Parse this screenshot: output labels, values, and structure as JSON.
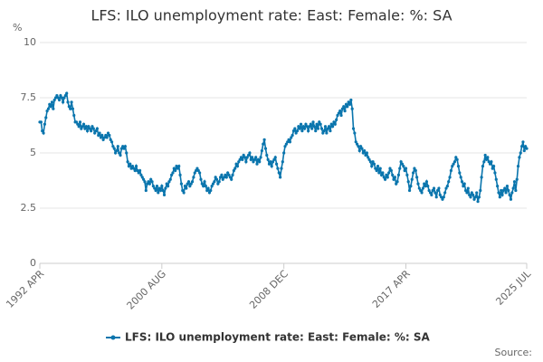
{
  "chart_data": {
    "type": "line",
    "title": "LFS: ILO unemployment rate: East: Female: %: SA",
    "y_label": "%",
    "source": "Source:",
    "ylim": [
      0,
      10
    ],
    "yticks": [
      0,
      2.5,
      5,
      7.5,
      10
    ],
    "grid": true,
    "categories": [
      "1992 APR",
      null,
      null,
      null,
      null,
      null,
      null,
      null,
      null,
      null,
      null,
      null,
      null,
      null,
      null,
      null,
      null,
      null,
      null,
      null,
      null,
      null,
      null,
      null,
      null,
      null,
      null,
      null,
      null,
      null,
      null,
      null,
      null,
      null,
      null,
      null,
      null,
      null,
      null,
      null,
      null,
      null,
      null,
      null,
      null,
      null,
      null,
      null,
      null,
      null,
      null,
      null,
      null,
      null,
      null,
      null,
      null,
      null,
      null,
      null,
      null,
      null,
      null,
      null,
      null,
      null,
      null,
      null,
      null,
      null,
      null,
      null,
      null,
      null,
      null,
      null,
      null,
      null,
      null,
      null,
      null,
      null,
      null,
      null,
      null,
      null,
      null,
      null,
      null,
      null,
      null,
      null,
      null,
      null,
      null,
      null,
      null,
      null,
      null,
      null,
      "2000 AUG",
      null,
      null,
      null,
      null,
      null,
      null,
      null,
      null,
      null,
      null,
      null,
      null,
      null,
      null,
      null,
      null,
      null,
      null,
      null,
      null,
      null,
      null,
      null,
      null,
      null,
      null,
      null,
      null,
      null,
      null,
      null,
      null,
      null,
      null,
      null,
      null,
      null,
      null,
      null,
      null,
      null,
      null,
      null,
      null,
      null,
      null,
      null,
      null,
      null,
      null,
      null,
      null,
      null,
      null,
      null,
      null,
      null,
      null,
      null,
      null,
      null,
      null,
      null,
      null,
      null,
      null,
      null,
      null,
      null,
      null,
      null,
      null,
      null,
      null,
      null,
      null,
      null,
      null,
      null,
      null,
      null,
      null,
      null,
      null,
      null,
      null,
      null,
      null,
      null,
      null,
      null,
      null,
      null,
      null,
      null,
      null,
      null,
      null,
      null,
      "2008 DEC",
      null,
      null,
      null,
      null,
      null,
      null,
      null,
      null,
      null,
      null,
      null,
      null,
      null,
      null,
      null,
      null,
      null,
      null,
      null,
      null,
      null,
      null,
      null,
      null,
      null,
      null,
      null,
      null,
      null,
      null,
      null,
      null,
      null,
      null,
      null,
      null,
      null,
      null,
      null,
      null,
      null,
      null,
      null,
      null,
      null,
      null,
      null,
      null,
      null,
      null,
      null,
      null,
      null,
      null,
      null,
      null,
      null,
      null,
      null,
      null,
      null,
      null,
      null,
      null,
      null,
      null,
      null,
      null,
      null,
      null,
      null,
      null,
      null,
      null,
      null,
      null,
      null,
      null,
      null,
      null,
      null,
      null,
      null,
      null,
      null,
      null,
      null,
      null,
      null,
      null,
      null,
      null,
      null,
      null,
      null,
      null,
      null,
      null,
      null,
      "2017 APR",
      null,
      null,
      null,
      null,
      null,
      null,
      null,
      null,
      null,
      null,
      null,
      null,
      null,
      null,
      null,
      null,
      null,
      null,
      null,
      null,
      null,
      null,
      null,
      null,
      null,
      null,
      null,
      null,
      null,
      null,
      null,
      null,
      null,
      null,
      null,
      null,
      null,
      null,
      null,
      null,
      null,
      null,
      null,
      null,
      null,
      null,
      null,
      null,
      null,
      null,
      null,
      null,
      null,
      null,
      null,
      null,
      null,
      null,
      null,
      null,
      null,
      null,
      null,
      null,
      null,
      null,
      null,
      null,
      null,
      null,
      null,
      null,
      null,
      null,
      null,
      null,
      null,
      null,
      null,
      null,
      null,
      null,
      null,
      null,
      null,
      null,
      null,
      null,
      null,
      null,
      null,
      null,
      null,
      null,
      null,
      null,
      null,
      null,
      "2025 JUL"
    ],
    "series": [
      {
        "name": "LFS: ILO unemployment rate: East: Female: %: SA",
        "color": "#0a75ad",
        "values": [
          6.4,
          6.4,
          6.0,
          5.9,
          6.3,
          6.6,
          6.9,
          7.0,
          7.2,
          7.1,
          7.3,
          7.0,
          7.4,
          7.5,
          7.6,
          7.5,
          7.4,
          7.6,
          7.5,
          7.3,
          7.5,
          7.6,
          7.7,
          7.3,
          7.1,
          7.0,
          7.3,
          7.0,
          6.7,
          6.4,
          6.4,
          6.3,
          6.2,
          6.4,
          6.1,
          6.2,
          6.3,
          6.1,
          6.2,
          6.0,
          6.2,
          6.1,
          6.0,
          6.2,
          6.1,
          5.9,
          6.0,
          6.1,
          5.8,
          5.9,
          5.7,
          5.8,
          5.6,
          5.7,
          5.8,
          5.7,
          5.9,
          5.8,
          5.6,
          5.5,
          5.3,
          5.2,
          5.0,
          5.1,
          5.3,
          5.0,
          4.9,
          5.2,
          5.3,
          5.2,
          5.3,
          5.0,
          4.6,
          4.4,
          4.5,
          4.3,
          4.4,
          4.3,
          4.2,
          4.4,
          4.2,
          4.1,
          4.2,
          4.0,
          3.9,
          3.8,
          3.7,
          3.3,
          3.6,
          3.7,
          3.6,
          3.8,
          3.7,
          3.5,
          3.4,
          3.3,
          3.5,
          3.2,
          3.4,
          3.3,
          3.5,
          3.3,
          3.1,
          3.4,
          3.6,
          3.5,
          3.7,
          3.8,
          4.0,
          4.1,
          4.3,
          4.2,
          4.4,
          4.3,
          4.4,
          4.0,
          3.6,
          3.3,
          3.2,
          3.5,
          3.4,
          3.6,
          3.7,
          3.5,
          3.6,
          3.7,
          3.9,
          4.1,
          4.2,
          4.3,
          4.2,
          4.1,
          3.8,
          3.6,
          3.5,
          3.7,
          3.5,
          3.3,
          3.4,
          3.2,
          3.3,
          3.5,
          3.6,
          3.7,
          3.9,
          3.8,
          3.6,
          3.7,
          3.9,
          4.0,
          3.8,
          3.9,
          4.0,
          3.9,
          4.1,
          4.0,
          3.9,
          3.8,
          4.0,
          4.2,
          4.3,
          4.5,
          4.4,
          4.6,
          4.7,
          4.8,
          4.7,
          4.9,
          4.8,
          4.6,
          4.8,
          4.9,
          5.0,
          4.7,
          4.8,
          4.6,
          4.7,
          4.8,
          4.5,
          4.7,
          4.6,
          4.8,
          5.1,
          5.4,
          5.6,
          5.2,
          4.9,
          4.7,
          4.5,
          4.6,
          4.4,
          4.6,
          4.7,
          4.8,
          4.5,
          4.3,
          4.1,
          3.9,
          4.3,
          4.6,
          5.0,
          5.3,
          5.4,
          5.5,
          5.6,
          5.5,
          5.7,
          5.8,
          6.0,
          6.1,
          5.9,
          6.0,
          6.2,
          6.1,
          6.3,
          6.0,
          6.2,
          6.1,
          6.3,
          6.2,
          6.0,
          6.2,
          6.3,
          6.1,
          6.4,
          6.2,
          6.0,
          6.3,
          6.1,
          6.4,
          6.3,
          6.1,
          5.9,
          6.0,
          6.2,
          5.9,
          6.1,
          6.2,
          6.0,
          6.3,
          6.2,
          6.4,
          6.3,
          6.5,
          6.7,
          6.8,
          6.9,
          6.7,
          7.0,
          7.1,
          6.9,
          7.2,
          7.1,
          7.3,
          7.2,
          7.4,
          7.0,
          6.1,
          5.9,
          5.5,
          5.4,
          5.3,
          5.1,
          5.3,
          5.2,
          5.0,
          5.1,
          4.9,
          5.0,
          4.8,
          4.7,
          4.6,
          4.4,
          4.6,
          4.5,
          4.3,
          4.2,
          4.4,
          4.1,
          4.3,
          4.0,
          4.1,
          3.9,
          3.8,
          4.0,
          3.9,
          4.1,
          4.3,
          4.2,
          4.0,
          3.8,
          3.9,
          3.6,
          3.7,
          4.0,
          4.3,
          4.6,
          4.5,
          4.4,
          4.2,
          4.3,
          4.0,
          3.7,
          3.3,
          3.5,
          3.8,
          4.1,
          4.3,
          4.2,
          3.9,
          3.6,
          3.4,
          3.3,
          3.2,
          3.4,
          3.6,
          3.5,
          3.7,
          3.5,
          3.3,
          3.2,
          3.1,
          3.3,
          3.4,
          3.2,
          3.0,
          3.3,
          3.4,
          3.1,
          3.0,
          2.9,
          3.0,
          3.2,
          3.4,
          3.5,
          3.7,
          3.9,
          4.2,
          4.4,
          4.5,
          4.6,
          4.8,
          4.7,
          4.4,
          4.1,
          3.9,
          3.7,
          3.5,
          3.6,
          3.3,
          3.2,
          3.4,
          3.1,
          3.0,
          3.2,
          3.1,
          2.9,
          3.0,
          3.2,
          2.8,
          3.0,
          3.3,
          3.9,
          4.4,
          4.6,
          4.9,
          4.7,
          4.8,
          4.6,
          4.5,
          4.6,
          4.3,
          4.4,
          4.1,
          3.8,
          3.5,
          3.2,
          3.0,
          3.3,
          3.1,
          3.3,
          3.4,
          3.2,
          3.5,
          3.3,
          3.1,
          2.9,
          3.2,
          3.4,
          3.7,
          3.3,
          3.8,
          4.4,
          4.8,
          5.0,
          5.3,
          5.5,
          5.1,
          5.3,
          5.2
        ]
      }
    ]
  }
}
